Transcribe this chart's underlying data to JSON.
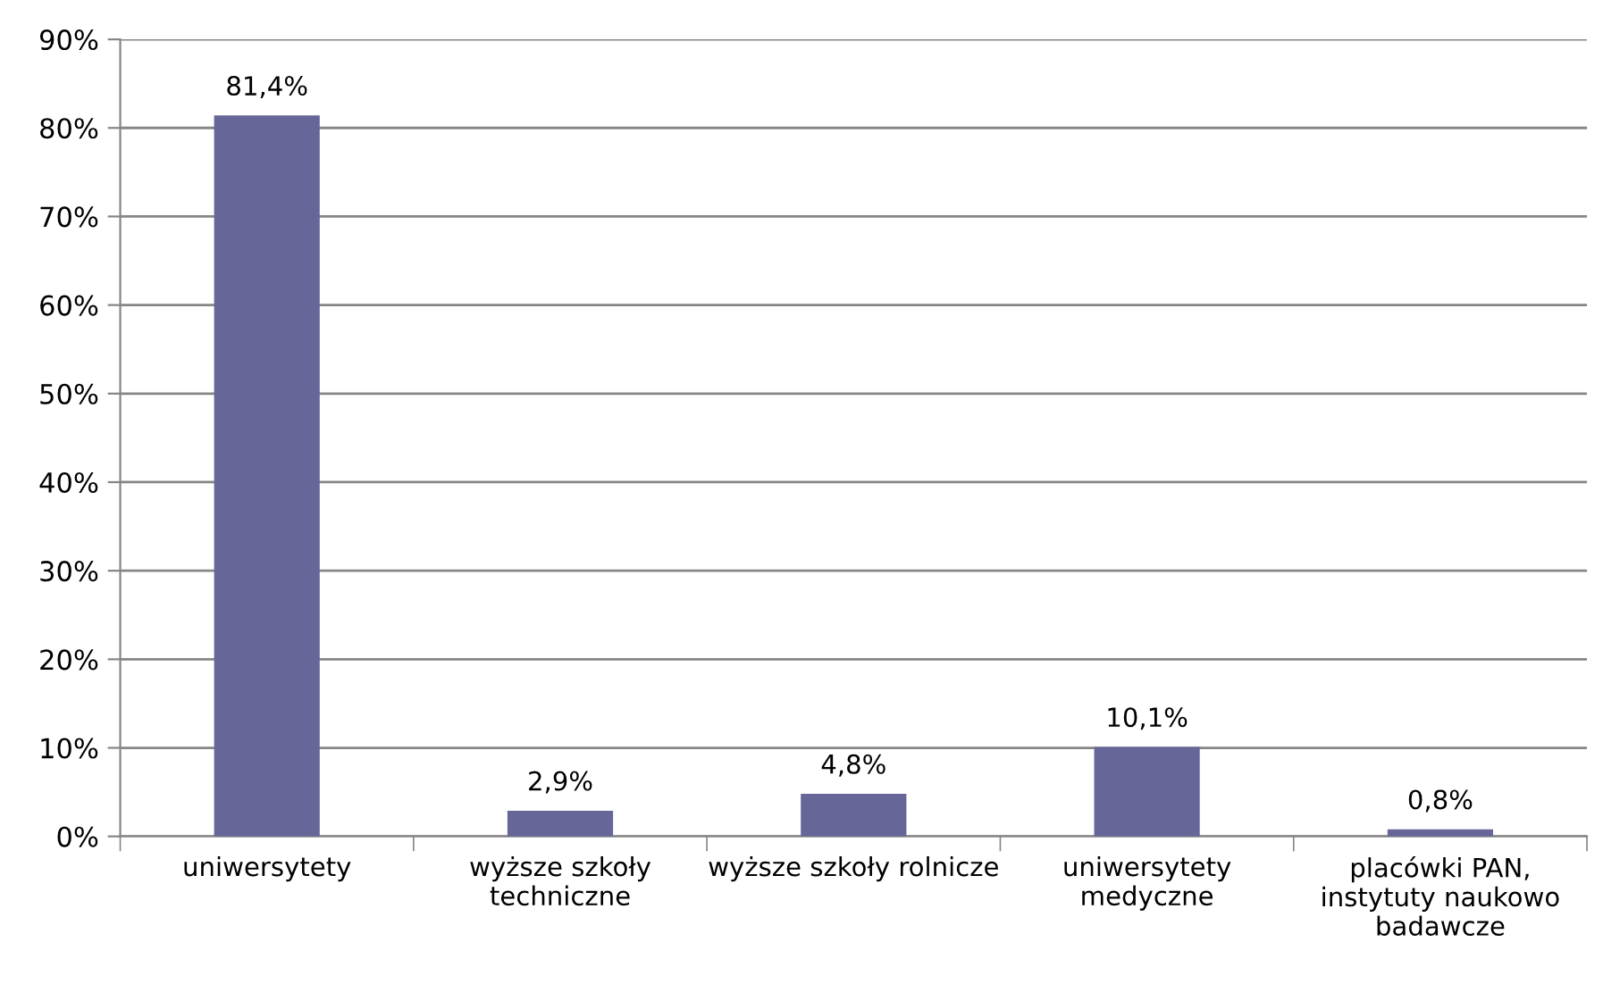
{
  "chart_data": {
    "type": "bar",
    "categories": [
      "uniwersytety",
      "wyższe szkoły\ntechniczne",
      "wyższe szkoły rolnicze",
      "uniwersytety\nmedyczne",
      "placówki PAN,\ninstytuty naukowo\nbadawcze"
    ],
    "values": [
      81.4,
      2.9,
      4.8,
      10.1,
      0.8
    ],
    "value_labels": [
      "81,4%",
      "2,9%",
      "4,8%",
      "10,1%",
      "0,8%"
    ],
    "color": "#666699",
    "ylim": [
      0,
      90
    ],
    "yticks": [
      {
        "value": 0,
        "label": "0%"
      },
      {
        "value": 10,
        "label": "10%"
      },
      {
        "value": 20,
        "label": "20%"
      },
      {
        "value": 30,
        "label": "30%"
      },
      {
        "value": 40,
        "label": "40%"
      },
      {
        "value": 50,
        "label": "50%"
      },
      {
        "value": 60,
        "label": "60%"
      },
      {
        "value": 70,
        "label": "70%"
      },
      {
        "value": 80,
        "label": "80%"
      },
      {
        "value": 90,
        "label": "90%"
      }
    ],
    "grid": "y",
    "legend": false
  }
}
